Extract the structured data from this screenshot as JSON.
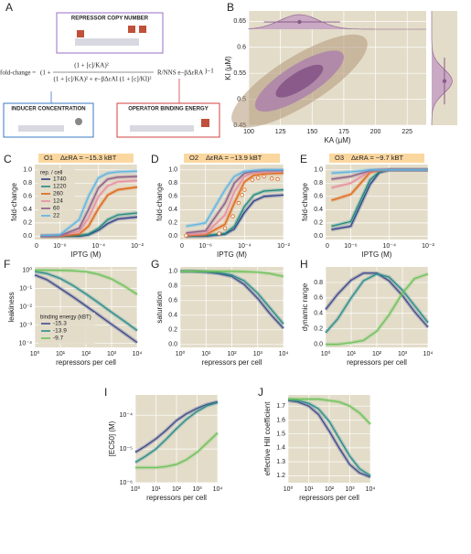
{
  "panel_a": {
    "label": "A",
    "repressor": "REPRESSOR COPY NUMBER",
    "inducer": "INDUCER CONCENTRATION",
    "operator": "OPERATOR BINDING ENERGY",
    "eq_lhs": "fold-change =",
    "eq_open": "(1 +",
    "eq_num": "(1 + [c]/KA)²",
    "eq_den": "(1 + [c]/KA)² + e−βΔεAI (1 + [c]/KI)²",
    "eq_factor": "R/NNS e−βΔεRA",
    "eq_close": ")−1"
  },
  "chart_data": [
    {
      "type": "density",
      "label": "B",
      "xlabel": "KA (µM)",
      "ylabel": "KI (µM)",
      "xlim": [
        100,
        240
      ],
      "xticks": [
        100,
        125,
        150,
        175,
        200,
        225
      ],
      "ylim": [
        0.45,
        0.67
      ],
      "yticks": [
        0.45,
        0.5,
        0.55,
        0.6,
        0.65
      ],
      "median": {
        "x": 140,
        "y": 0.535
      },
      "interval_x": [
        112,
        172
      ],
      "interval_y": [
        0.49,
        0.58
      ],
      "color": "#8a5a8a"
    },
    {
      "type": "line",
      "label": "C",
      "operator": "O1",
      "title": "ΔεRA = −15.3 kBT",
      "xlabel": "IPTG (M)",
      "ylabel": "fold-change",
      "xlog": true,
      "x_zero_label": "0",
      "xlim": [
        5e-08,
        0.01
      ],
      "xticks": [
        {
          "value": 1e-06,
          "label": "10⁻⁶"
        },
        {
          "value": 0.0001,
          "label": "10⁻⁴"
        },
        {
          "value": 0.01,
          "label": "10⁻²"
        }
      ],
      "ylim": [
        -0.05,
        1.08
      ],
      "yticks": [
        {
          "value": 0,
          "label": "0.0"
        },
        0.2,
        0.4,
        0.6,
        0.8,
        {
          "value": 1,
          "label": "1.0"
        }
      ],
      "legend": true,
      "legend_title": "rep. / cell",
      "x": [
        1e-07,
        1e-06,
        1e-05,
        3e-05,
        0.0001,
        0.0003,
        0.001,
        0.01
      ],
      "series": [
        {
          "name": "1740",
          "color": "#2f3f8a",
          "values": [
            0,
            0,
            0,
            0.02,
            0.09,
            0.19,
            0.26,
            0.29
          ]
        },
        {
          "name": "1220",
          "color": "#1f8a80",
          "values": [
            0,
            0,
            0.01,
            0.03,
            0.12,
            0.25,
            0.32,
            0.35
          ]
        },
        {
          "name": "260",
          "color": "#e06414",
          "values": [
            0,
            0,
            0.03,
            0.15,
            0.42,
            0.62,
            0.7,
            0.74
          ]
        },
        {
          "name": "124",
          "color": "#e88ca0",
          "values": [
            0,
            0.01,
            0.07,
            0.27,
            0.6,
            0.76,
            0.82,
            0.84
          ]
        },
        {
          "name": "60",
          "color": "#8b5c86",
          "values": [
            0,
            0.01,
            0.12,
            0.4,
            0.73,
            0.86,
            0.89,
            0.9
          ]
        },
        {
          "name": "22",
          "color": "#5ab4e5",
          "values": [
            0.01,
            0.02,
            0.25,
            0.6,
            0.88,
            0.95,
            0.97,
            0.98
          ]
        }
      ]
    },
    {
      "type": "line",
      "label": "D",
      "operator": "O2",
      "title": "ΔεRA = −13.9 kBT",
      "xlabel": "IPTG (M)",
      "ylabel": "fold-change",
      "xlog": true,
      "x_zero_label": "0",
      "xlim": [
        5e-08,
        0.01
      ],
      "xticks": [
        {
          "value": 1e-06,
          "label": "10⁻⁶"
        },
        {
          "value": 0.0001,
          "label": "10⁻⁴"
        },
        {
          "value": 0.01,
          "label": "10⁻²"
        }
      ],
      "ylim": [
        -0.05,
        1.08
      ],
      "yticks": [
        {
          "value": 0,
          "label": "0.0"
        },
        0.2,
        0.4,
        0.6,
        0.8,
        {
          "value": 1,
          "label": "1.0"
        }
      ],
      "x": [
        1e-07,
        1e-06,
        1e-05,
        3e-05,
        0.0001,
        0.0003,
        0.001,
        0.01
      ],
      "series": [
        {
          "color": "#2f3f8a",
          "values": [
            0,
            0,
            0.03,
            0.11,
            0.36,
            0.53,
            0.6,
            0.62
          ]
        },
        {
          "color": "#1f8a80",
          "values": [
            0,
            0.01,
            0.04,
            0.15,
            0.45,
            0.62,
            0.68,
            0.7
          ]
        },
        {
          "color": "#e06414",
          "values": [
            0.01,
            0.02,
            0.18,
            0.5,
            0.82,
            0.92,
            0.94,
            0.95
          ]
        },
        {
          "color": "#e88ca0",
          "values": [
            0.02,
            0.04,
            0.32,
            0.67,
            0.9,
            0.96,
            0.97,
            0.98
          ]
        },
        {
          "color": "#8b5c86",
          "values": [
            0.05,
            0.08,
            0.5,
            0.8,
            0.95,
            0.98,
            0.99,
            0.99
          ]
        },
        {
          "color": "#5ab4e5",
          "values": [
            0.15,
            0.2,
            0.7,
            0.9,
            0.98,
            0.99,
            1.0,
            1.0
          ]
        }
      ],
      "points": {
        "color": "#e06414",
        "x": [
          1e-07,
          5e-06,
          1e-05,
          2.5e-05,
          5e-05,
          7.5e-05,
          0.0001,
          0.00025,
          0.0005,
          0.001,
          0.0025,
          0.005
        ],
        "y": [
          0.01,
          0.04,
          0.12,
          0.3,
          0.5,
          0.62,
          0.7,
          0.85,
          0.88,
          0.9,
          0.87,
          0.86
        ]
      }
    },
    {
      "type": "line",
      "label": "E",
      "operator": "O3",
      "title": "ΔεRA = −9.7 kBT",
      "xlabel": "IPTG (M)",
      "ylabel": "fold-change",
      "xlog": true,
      "x_zero_label": "0",
      "xlim": [
        5e-08,
        0.01
      ],
      "xticks": [
        {
          "value": 1e-06,
          "label": "10⁻⁶"
        },
        {
          "value": 0.0001,
          "label": "10⁻⁴"
        },
        {
          "value": 0.01,
          "label": "10⁻²"
        }
      ],
      "ylim": [
        -0.05,
        1.08
      ],
      "yticks": [
        {
          "value": 0,
          "label": "0.0"
        },
        0.2,
        0.4,
        0.6,
        0.8,
        {
          "value": 1,
          "label": "1.0"
        }
      ],
      "x": [
        1e-07,
        1e-06,
        1e-05,
        3e-05,
        0.0001,
        0.0003,
        0.001,
        0.01
      ],
      "series": [
        {
          "color": "#2f3f8a",
          "values": [
            0.1,
            0.15,
            0.78,
            0.96,
            1,
            1,
            1,
            1
          ]
        },
        {
          "color": "#1f8a80",
          "values": [
            0.15,
            0.22,
            0.85,
            0.97,
            1,
            1,
            1,
            1
          ]
        },
        {
          "color": "#e06414",
          "values": [
            0.54,
            0.63,
            0.96,
            0.99,
            1,
            1,
            1,
            1
          ]
        },
        {
          "color": "#e88ca0",
          "values": [
            0.73,
            0.8,
            0.98,
            1,
            1,
            1,
            1,
            1
          ]
        },
        {
          "color": "#8b5c86",
          "values": [
            0.86,
            0.9,
            0.99,
            1,
            1,
            1,
            1,
            1
          ]
        },
        {
          "color": "#5ab4e5",
          "values": [
            0.95,
            0.97,
            1,
            1,
            1,
            1,
            1,
            1
          ]
        }
      ]
    },
    {
      "type": "line",
      "label": "F",
      "xlabel": "repressors per cell",
      "ylabel": "leakiness",
      "xlog": true,
      "ylog": true,
      "legend": true,
      "legend_title": "binding energy (kBT)",
      "xlim": [
        1,
        10000
      ],
      "xticks": [
        {
          "value": 1,
          "label": "10⁰"
        },
        {
          "value": 10,
          "label": "10¹"
        },
        {
          "value": 100,
          "label": "10²"
        },
        {
          "value": 1000,
          "label": "10³"
        },
        {
          "value": 10000,
          "label": "10⁴"
        }
      ],
      "ylim": [
        6e-05,
        1.5
      ],
      "yticks": [
        {
          "value": 0.0001,
          "label": "10⁻⁴"
        },
        {
          "value": 0.001,
          "label": "10⁻³"
        },
        {
          "value": 0.01,
          "label": "10⁻²"
        },
        {
          "value": 0.1,
          "label": "10⁻¹"
        },
        {
          "value": 1,
          "label": "10⁰"
        }
      ],
      "x": [
        1,
        3,
        10,
        30,
        100,
        300,
        1000,
        3000,
        10000
      ],
      "series": [
        {
          "name": "-15.3",
          "color": "#3d4a8c",
          "values": [
            0.55,
            0.3,
            0.1,
            0.036,
            0.011,
            0.0037,
            0.0011,
            0.00037,
            0.00011
          ]
        },
        {
          "name": "-13.9",
          "color": "#2a8c8a",
          "values": [
            0.85,
            0.65,
            0.35,
            0.15,
            0.05,
            0.017,
            0.005,
            0.0017,
            0.0005
          ]
        },
        {
          "name": "-9.7",
          "color": "#6cc25a",
          "values": [
            1.0,
            1.0,
            0.98,
            0.94,
            0.83,
            0.6,
            0.33,
            0.14,
            0.047
          ]
        }
      ]
    },
    {
      "type": "line",
      "label": "G",
      "xlabel": "repressors per cell",
      "ylabel": "saturation",
      "xlog": true,
      "xlim": [
        1,
        10000
      ],
      "xticks": [
        {
          "value": 1,
          "label": "10⁰"
        },
        {
          "value": 10,
          "label": "10¹"
        },
        {
          "value": 100,
          "label": "10²"
        },
        {
          "value": 1000,
          "label": "10³"
        },
        {
          "value": 10000,
          "label": "10⁴"
        }
      ],
      "ylim": [
        -0.04,
        1.06
      ],
      "yticks": [
        {
          "value": 0,
          "label": "0.0"
        },
        0.2,
        0.4,
        0.6,
        0.8,
        {
          "value": 1,
          "label": "1.0"
        }
      ],
      "x": [
        1,
        3,
        10,
        30,
        100,
        300,
        1000,
        3000,
        10000
      ],
      "series": [
        {
          "color": "#3d4a8c",
          "values": [
            1.0,
            1.0,
            0.99,
            0.97,
            0.93,
            0.82,
            0.63,
            0.42,
            0.22
          ]
        },
        {
          "color": "#2a8c8a",
          "values": [
            1.0,
            1.0,
            0.995,
            0.985,
            0.95,
            0.87,
            0.7,
            0.5,
            0.28
          ]
        },
        {
          "color": "#6cc25a",
          "values": [
            1.0,
            1.0,
            1.0,
            1.0,
            1.0,
            0.995,
            0.99,
            0.97,
            0.93
          ]
        }
      ]
    },
    {
      "type": "line",
      "label": "H",
      "xlabel": "repressors per cell",
      "ylabel": "dynamic range",
      "xlog": true,
      "xlim": [
        1,
        10000
      ],
      "xticks": [
        {
          "value": 1,
          "label": "10⁰"
        },
        {
          "value": 10,
          "label": "10¹"
        },
        {
          "value": 100,
          "label": "10²"
        },
        {
          "value": 1000,
          "label": "10³"
        },
        {
          "value": 10000,
          "label": "10⁴"
        }
      ],
      "ylim": [
        -0.04,
        1.0
      ],
      "yticks": [
        {
          "value": 0,
          "label": "0.0"
        },
        0.2,
        0.4,
        0.6,
        0.8
      ],
      "x": [
        1,
        3,
        10,
        30,
        100,
        300,
        1000,
        3000,
        10000
      ],
      "series": [
        {
          "color": "#3d4a8c",
          "values": [
            0.45,
            0.65,
            0.83,
            0.92,
            0.92,
            0.82,
            0.63,
            0.42,
            0.22
          ]
        },
        {
          "color": "#2a8c8a",
          "values": [
            0.15,
            0.33,
            0.6,
            0.82,
            0.91,
            0.87,
            0.7,
            0.5,
            0.28
          ]
        },
        {
          "color": "#6cc25a",
          "values": [
            0.0,
            0.0,
            0.02,
            0.05,
            0.17,
            0.38,
            0.66,
            0.85,
            0.91
          ]
        }
      ]
    },
    {
      "type": "line",
      "label": "I",
      "xlabel": "repressors per cell",
      "ylabel": "[EC50] (M)",
      "xlog": true,
      "ylog": true,
      "xlim": [
        1,
        10000
      ],
      "xticks": [
        {
          "value": 1,
          "label": "10⁰"
        },
        {
          "value": 10,
          "label": "10¹"
        },
        {
          "value": 100,
          "label": "10²"
        },
        {
          "value": 1000,
          "label": "10³"
        },
        {
          "value": 10000,
          "label": "10⁴"
        }
      ],
      "ylim": [
        1e-06,
        0.0004
      ],
      "yticks": [
        {
          "value": 1e-06,
          "label": "10⁻⁶"
        },
        {
          "value": 1e-05,
          "label": "10⁻⁵"
        },
        {
          "value": 0.0001,
          "label": "10⁻⁴"
        }
      ],
      "x": [
        1,
        3,
        10,
        30,
        100,
        300,
        1000,
        3000,
        10000
      ],
      "series": [
        {
          "color": "#3d4a8c",
          "values": [
            8e-06,
            1.2e-05,
            2e-05,
            3.5e-05,
            7e-05,
            0.00011,
            0.00016,
            0.00021,
            0.00025
          ]
        },
        {
          "color": "#2a8c8a",
          "values": [
            4e-06,
            6e-06,
            1e-05,
            1.9e-05,
            4e-05,
            7.5e-05,
            0.00013,
            0.00019,
            0.00024
          ]
        },
        {
          "color": "#6cc25a",
          "values": [
            2.8e-06,
            2.8e-06,
            2.8e-06,
            3e-06,
            3.5e-06,
            4.8e-06,
            8e-06,
            1.5e-05,
            3e-05
          ]
        }
      ]
    },
    {
      "type": "line",
      "label": "J",
      "xlabel": "repressors per cell",
      "ylabel": "effective Hill coefficient",
      "xlog": true,
      "xlim": [
        1,
        10000
      ],
      "xticks": [
        {
          "value": 1,
          "label": "10⁰"
        },
        {
          "value": 10,
          "label": "10¹"
        },
        {
          "value": 100,
          "label": "10²"
        },
        {
          "value": 1000,
          "label": "10³"
        },
        {
          "value": 10000,
          "label": "10⁴"
        }
      ],
      "ylim": [
        1.15,
        1.78
      ],
      "yticks": [
        1.2,
        1.3,
        1.4,
        1.5,
        1.6,
        1.7
      ],
      "x": [
        1,
        3,
        10,
        30,
        100,
        300,
        1000,
        3000,
        10000
      ],
      "series": [
        {
          "color": "#3d4a8c",
          "values": [
            1.74,
            1.73,
            1.7,
            1.64,
            1.52,
            1.4,
            1.28,
            1.22,
            1.19
          ]
        },
        {
          "color": "#2a8c8a",
          "values": [
            1.75,
            1.74,
            1.72,
            1.68,
            1.59,
            1.47,
            1.34,
            1.25,
            1.2
          ]
        },
        {
          "color": "#6cc25a",
          "values": [
            1.75,
            1.75,
            1.75,
            1.75,
            1.74,
            1.73,
            1.7,
            1.65,
            1.57
          ]
        }
      ]
    }
  ]
}
